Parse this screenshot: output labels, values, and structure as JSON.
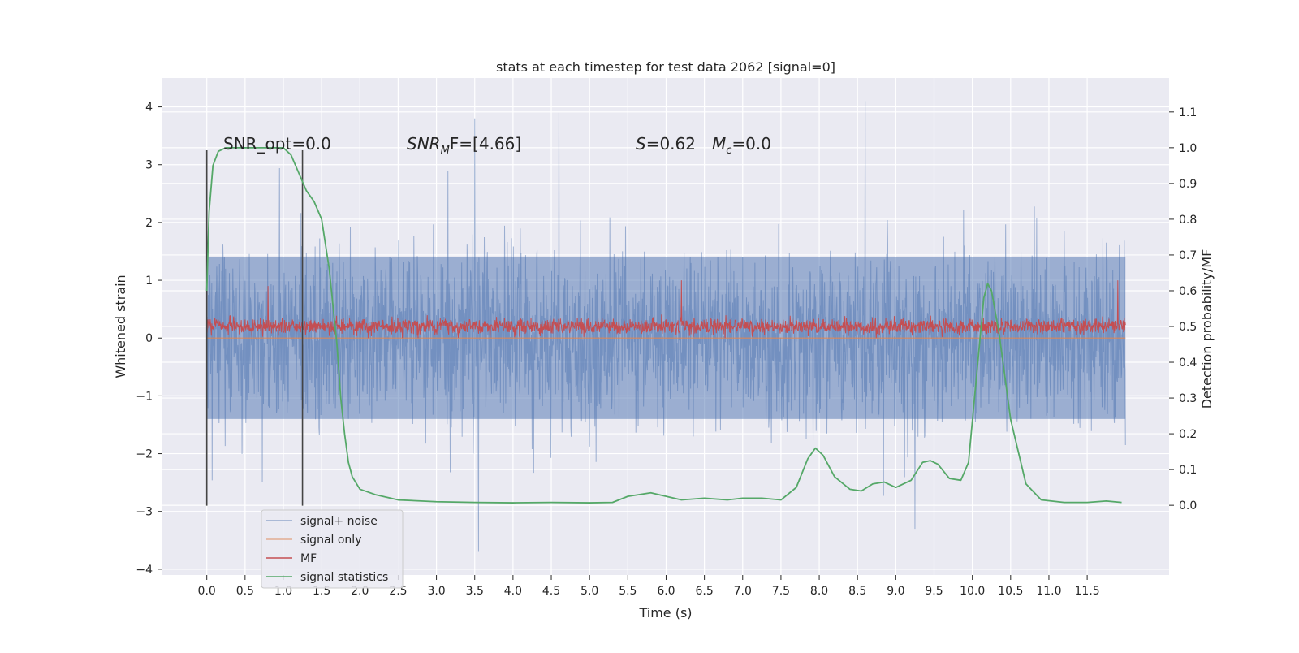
{
  "chart_data": {
    "type": "line",
    "title": "stats at each timestep for test data 2062 [signal=0]",
    "xlabel": "Time (s)",
    "ylabel": "Whitened strain",
    "y2label": "Detection probability/MF",
    "xlim": [
      -0.58,
      12.57
    ],
    "ylim": [
      -4.1,
      4.5
    ],
    "y2lim": [
      -0.195,
      1.195
    ],
    "grid": true,
    "xticks": [
      "0.0",
      "0.5",
      "1.0",
      "1.5",
      "2.0",
      "2.5",
      "3.0",
      "3.5",
      "4.0",
      "4.5",
      "5.0",
      "5.5",
      "6.0",
      "6.5",
      "7.0",
      "7.5",
      "8.0",
      "8.5",
      "9.0",
      "9.5",
      "10.0",
      "10.5",
      "11.0",
      "11.5"
    ],
    "yticks": [
      "4",
      "3",
      "2",
      "1",
      "0",
      "−1",
      "−2",
      "−3",
      "−4"
    ],
    "y2ticks": [
      "1.1",
      "1.0",
      "0.9",
      "0.8",
      "0.7",
      "0.6",
      "0.5",
      "0.4",
      "0.3",
      "0.2",
      "0.1",
      "0.0"
    ],
    "legend_position": "lower-left",
    "annotations": {
      "snr_opt": "SNR_opt=0.0",
      "snr_mf_name": "SNR",
      "snr_mf_sub": "M",
      "snr_mf_tail": "F=[4.66]",
      "s_name": "S",
      "s_value": "=0.62",
      "mc_name": "M",
      "mc_sub": "c",
      "mc_value": "=0.0"
    },
    "vlines": [
      0.0,
      1.25
    ],
    "vline_range": [
      -2.9,
      3.25
    ],
    "series": [
      {
        "name": "signal+ noise",
        "color": "#4c72b0",
        "noise_amplitude": 1.6,
        "notable_peaks": [
          [
            3.5,
            3.8
          ],
          [
            4.6,
            3.9
          ],
          [
            8.6,
            4.1
          ],
          [
            3.55,
            -3.7
          ],
          [
            9.25,
            -3.3
          ]
        ]
      },
      {
        "name": "signal only",
        "color": "#dd8452",
        "x": [
          0,
          12
        ],
        "values": [
          0.0,
          0.0
        ]
      },
      {
        "name": "MF",
        "color": "#c44e52",
        "base": 0.2,
        "noise_amplitude": 0.22,
        "notable_peaks": [
          [
            0.8,
            0.9
          ],
          [
            6.2,
            1.0
          ],
          [
            11.9,
            1.0
          ]
        ]
      },
      {
        "name": "signal statistics",
        "color": "#55a868",
        "x": [
          0.0,
          0.03,
          0.08,
          0.15,
          0.25,
          0.5,
          1.0,
          1.1,
          1.2,
          1.3,
          1.4,
          1.5,
          1.6,
          1.7,
          1.75,
          1.8,
          1.85,
          1.9,
          2.0,
          2.2,
          2.5,
          3.0,
          3.5,
          4.0,
          4.5,
          5.0,
          5.3,
          5.5,
          5.8,
          6.0,
          6.2,
          6.5,
          6.8,
          7.0,
          7.25,
          7.5,
          7.7,
          7.85,
          7.95,
          8.05,
          8.2,
          8.4,
          8.55,
          8.7,
          8.85,
          9.0,
          9.2,
          9.35,
          9.45,
          9.55,
          9.7,
          9.85,
          9.95,
          10.05,
          10.15,
          10.2,
          10.25,
          10.35,
          10.5,
          10.7,
          10.9,
          11.2,
          11.5,
          11.75,
          11.95
        ],
        "values": [
          0.6,
          0.82,
          0.95,
          0.99,
          1.0,
          1.0,
          1.0,
          0.98,
          0.93,
          0.88,
          0.85,
          0.8,
          0.66,
          0.45,
          0.3,
          0.2,
          0.12,
          0.08,
          0.045,
          0.03,
          0.015,
          0.01,
          0.008,
          0.007,
          0.008,
          0.007,
          0.008,
          0.025,
          0.035,
          0.025,
          0.015,
          0.02,
          0.015,
          0.02,
          0.02,
          0.015,
          0.05,
          0.13,
          0.16,
          0.14,
          0.08,
          0.045,
          0.04,
          0.06,
          0.065,
          0.05,
          0.07,
          0.12,
          0.125,
          0.115,
          0.075,
          0.07,
          0.12,
          0.35,
          0.58,
          0.62,
          0.6,
          0.48,
          0.24,
          0.06,
          0.015,
          0.008,
          0.008,
          0.012,
          0.008
        ]
      }
    ]
  }
}
